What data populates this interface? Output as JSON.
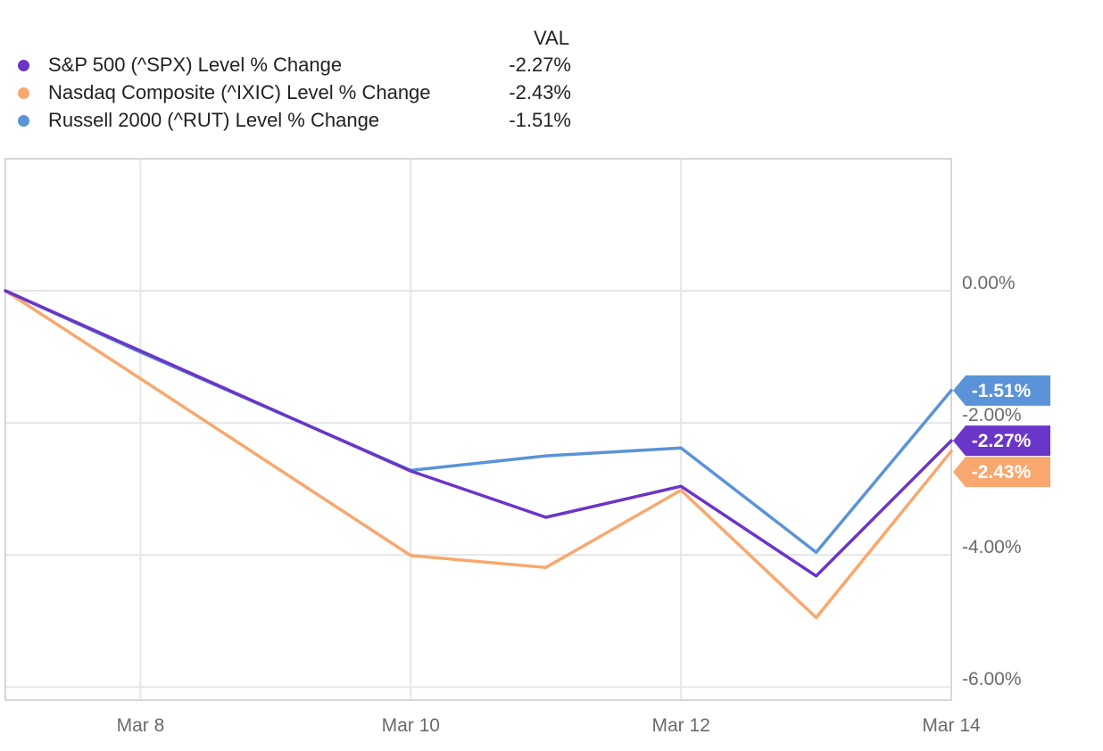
{
  "legend": {
    "header": "VAL",
    "items": [
      {
        "label": "S&P 500 (^SPX) Level % Change",
        "value": "-2.27%",
        "color": "#6a35c9"
      },
      {
        "label": "Nasdaq Composite (^IXIC) Level % Change",
        "value": "-2.43%",
        "color": "#f8a86e"
      },
      {
        "label": "Russell 2000 (^RUT) Level % Change",
        "value": "-1.51%",
        "color": "#5a93d8"
      }
    ]
  },
  "chart_data": {
    "type": "line",
    "x": [
      "2024-03-07",
      "2024-03-08",
      "2024-03-10",
      "2024-03-11",
      "2024-03-12",
      "2024-03-13",
      "2024-03-14"
    ],
    "xticks": [
      {
        "x": "2024-03-08",
        "label": "Mar 8"
      },
      {
        "x": "2024-03-10",
        "label": "Mar 10"
      },
      {
        "x": "2024-03-12",
        "label": "Mar 12"
      },
      {
        "x": "2024-03-14",
        "label": "Mar 14"
      }
    ],
    "yticks": [
      {
        "value": 0,
        "label": "0.00%"
      },
      {
        "value": -2,
        "label": "-2.00%"
      },
      {
        "value": -4,
        "label": "-4.00%"
      },
      {
        "value": -6,
        "label": "-6.00%"
      }
    ],
    "ylim": [
      -6.2,
      2.0
    ],
    "xlim": [
      "2024-03-07",
      "2024-03-14"
    ],
    "grid": true,
    "y_axis_side": "right",
    "series": [
      {
        "name": "Russell 2000 (^RUT) Level % Change",
        "color": "#5a93d8",
        "values": [
          0,
          -0.93,
          -2.72,
          -2.5,
          -2.38,
          -3.96,
          -1.51
        ],
        "end_label": "-1.51%"
      },
      {
        "name": "Nasdaq Composite (^IXIC) Level % Change",
        "color": "#f8a86e",
        "values": [
          0,
          -1.33,
          -4.01,
          -4.19,
          -3.02,
          -4.95,
          -2.43
        ],
        "end_label": "-2.43%"
      },
      {
        "name": "S&P 500 (^SPX) Level % Change",
        "color": "#6a35c9",
        "values": [
          0,
          -0.91,
          -2.73,
          -3.43,
          -2.96,
          -4.32,
          -2.27
        ],
        "end_label": "-2.27%"
      }
    ]
  }
}
